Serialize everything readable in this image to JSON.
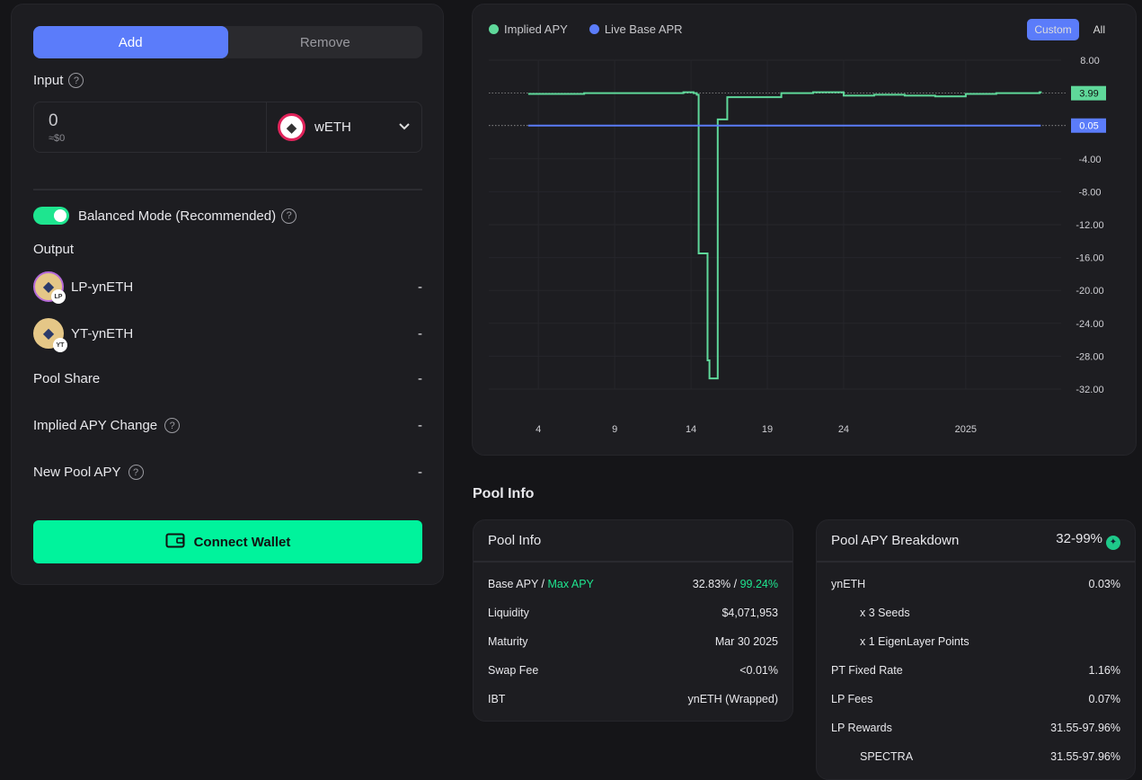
{
  "tabs": {
    "add": "Add",
    "remove": "Remove",
    "active": "Add"
  },
  "input": {
    "label": "Input",
    "help": "?",
    "amount": "0",
    "usd": "≈$0",
    "token": "wETH",
    "token_icon": "ethereum-icon"
  },
  "balanced": {
    "label": "Balanced Mode (Recommended)",
    "enabled": true,
    "help": "?"
  },
  "output": {
    "label": "Output",
    "items": [
      {
        "name": "LP-ynETH",
        "badge": "LP",
        "value": "-"
      },
      {
        "name": "YT-ynETH",
        "badge": "YT",
        "value": "-"
      }
    ]
  },
  "stats": [
    {
      "label": "Pool Share",
      "value": "-",
      "help": false
    },
    {
      "label": "Implied APY Change",
      "value": "-",
      "help": true
    },
    {
      "label": "New Pool APY",
      "value": "-",
      "help": true
    }
  ],
  "connect_label": "Connect Wallet",
  "range": {
    "custom": "Custom",
    "all": "All",
    "active": "Custom"
  },
  "colors": {
    "implied": "#5fd89a",
    "base": "#5b7cfa",
    "accent": "#00f39c"
  },
  "chart_data": {
    "type": "line",
    "legend_placement": "top-left",
    "yticks": [
      "8.00",
      "-4.00",
      "-8.00",
      "-12.00",
      "-16.00",
      "-20.00",
      "-24.00",
      "-28.00",
      "-32.00"
    ],
    "xticks": [
      {
        "date": "2024-12-04",
        "label": "4"
      },
      {
        "date": "2024-12-09",
        "label": "9"
      },
      {
        "date": "2024-12-14",
        "label": "14"
      },
      {
        "date": "2024-12-19",
        "label": "19"
      },
      {
        "date": "2024-12-24",
        "label": "24"
      },
      {
        "date": "2025-01-01",
        "label": "2025"
      }
    ],
    "ylim": [
      -32,
      8
    ],
    "xlim": [
      "2024-11-30T18:00",
      "2025-01-07T06:00"
    ],
    "series": [
      {
        "name": "Implied APY",
        "last": "3.99",
        "step": true,
        "points": [
          [
            "2024-12-03T08:00",
            3.9
          ],
          [
            "2024-12-07T00:00",
            4.0
          ],
          [
            "2024-12-11T00:00",
            4.0
          ],
          [
            "2024-12-13T12:00",
            4.1
          ],
          [
            "2024-12-14T04:00",
            4.0
          ],
          [
            "2024-12-14T09:00",
            3.8
          ],
          [
            "2024-12-14T12:00",
            -15.5
          ],
          [
            "2024-12-15T02:00",
            -28.5
          ],
          [
            "2024-12-15T05:00",
            -30.7
          ],
          [
            "2024-12-15T18:00",
            0.8
          ],
          [
            "2024-12-16T09:00",
            3.5
          ],
          [
            "2024-12-19T22:00",
            4.0
          ],
          [
            "2024-12-22T00:00",
            4.1
          ],
          [
            "2024-12-24T00:00",
            3.7
          ],
          [
            "2024-12-26T00:00",
            3.8
          ],
          [
            "2024-12-28T00:00",
            3.7
          ],
          [
            "2024-12-30T00:00",
            3.6
          ],
          [
            "2025-01-01T00:00",
            3.9
          ],
          [
            "2025-01-03T00:00",
            4.0
          ],
          [
            "2025-01-05T20:00",
            4.1
          ],
          [
            "2025-01-05T22:00",
            3.99
          ]
        ]
      },
      {
        "name": "Live Base APR",
        "last": "0.05",
        "step": true,
        "points": [
          [
            "2024-12-03T08:00",
            0.05
          ],
          [
            "2025-01-05T22:00",
            0.05
          ]
        ]
      }
    ]
  },
  "pool_info_heading": "Pool Info",
  "pool_info": {
    "title": "Pool Info",
    "base_label": "Base APY",
    "sep": " / ",
    "max_label": "Max APY",
    "base_value": "32.83%",
    "max_value": "99.24%",
    "rows": [
      {
        "label": "Liquidity",
        "value": "$4,071,953"
      },
      {
        "label": "Maturity",
        "value": "Mar 30 2025"
      },
      {
        "label": "Swap Fee",
        "value": "<0.01%"
      },
      {
        "label": "IBT",
        "value": "ynETH (Wrapped)"
      }
    ]
  },
  "breakdown": {
    "title": "Pool APY Breakdown",
    "total": "32-99%",
    "rows": [
      {
        "label": "ynETH",
        "value": "0.03%",
        "indent": false
      },
      {
        "label": "x 3 Seeds",
        "value": "",
        "indent": true
      },
      {
        "label": "x 1 EigenLayer Points",
        "value": "",
        "indent": true
      },
      {
        "label": "PT Fixed Rate",
        "value": "1.16%",
        "indent": false
      },
      {
        "label": "LP Fees",
        "value": "0.07%",
        "indent": false
      },
      {
        "label": "LP Rewards",
        "value": "31.55-97.96%",
        "indent": false
      },
      {
        "label": "SPECTRA",
        "value": "31.55-97.96%",
        "indent": true
      }
    ]
  }
}
